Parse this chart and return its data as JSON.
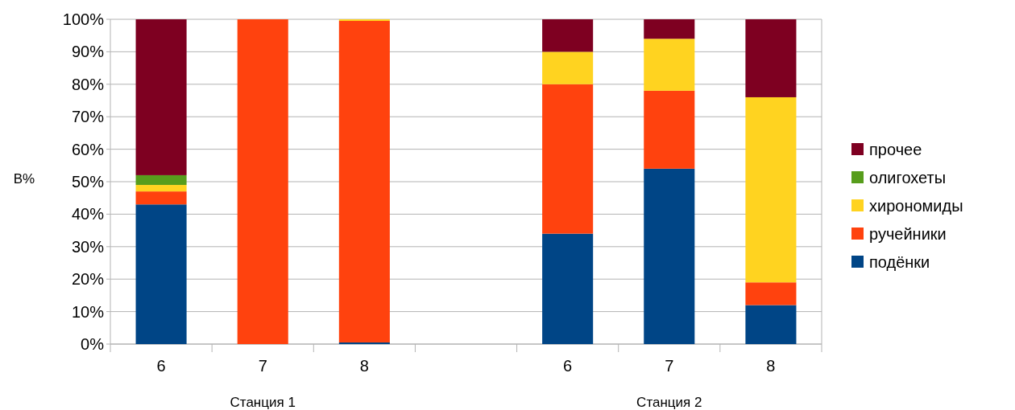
{
  "chart_data": {
    "type": "bar",
    "stacked": true,
    "ylabel": "В%",
    "categories": [
      "6",
      "7",
      "8",
      null,
      "6",
      "7",
      "8"
    ],
    "series": [
      {
        "name": "подёнки",
        "color": "#004586",
        "values": [
          43,
          0,
          0.5,
          null,
          34,
          54,
          12
        ]
      },
      {
        "name": "ручейники",
        "color": "#ff420e",
        "values": [
          4,
          100,
          99,
          null,
          46,
          24,
          7
        ]
      },
      {
        "name": "хирономиды",
        "color": "#ffd320",
        "values": [
          2,
          0,
          0.5,
          null,
          10,
          16,
          57
        ]
      },
      {
        "name": "олигохеты",
        "color": "#579d1c",
        "values": [
          3,
          0,
          0,
          null,
          0,
          0,
          0
        ]
      },
      {
        "name": "прочее",
        "color": "#7e0021",
        "values": [
          48,
          0,
          0,
          null,
          10,
          6,
          24
        ]
      }
    ],
    "ylim": [
      0,
      100
    ],
    "yticks": [
      {
        "value": 0,
        "label": "0%"
      },
      {
        "value": 10,
        "label": "10%"
      },
      {
        "value": 20,
        "label": "20%"
      },
      {
        "value": 30,
        "label": "30%"
      },
      {
        "value": 40,
        "label": "40%"
      },
      {
        "value": 50,
        "label": "50%"
      },
      {
        "value": 60,
        "label": "60%"
      },
      {
        "value": 70,
        "label": "70%"
      },
      {
        "value": 80,
        "label": "80%"
      },
      {
        "value": 90,
        "label": "90%"
      },
      {
        "value": 100,
        "label": "100%"
      }
    ],
    "grid": "y",
    "legend": "right",
    "annotations": [
      "Станция 1",
      "Станция 2"
    ]
  }
}
